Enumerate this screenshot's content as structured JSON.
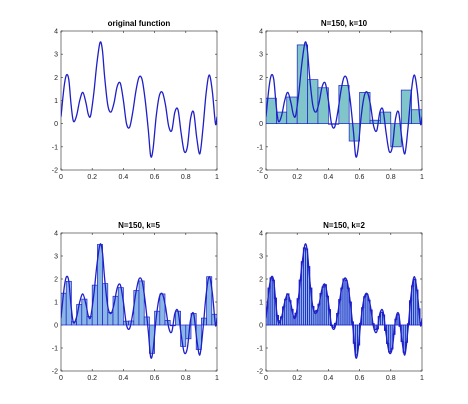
{
  "figure": {
    "background": "#ffffff",
    "axis_color": "#262626",
    "line_color": "#1f1fc8",
    "bar_fill_k10": "#7fc5c9",
    "bar_fill_small_k": "#8ab8e6",
    "bar_edge": "#1f1fc8"
  },
  "chart_data": [
    {
      "type": "line",
      "title": "original function",
      "xlim": [
        0,
        1
      ],
      "ylim": [
        -2,
        4
      ],
      "xticks": [
        "0",
        "0.2",
        "0.4",
        "0.6",
        "0.8",
        "1"
      ],
      "yticks": [
        "-2",
        "-1",
        "0",
        "1",
        "2",
        "3",
        "4"
      ],
      "k": null,
      "bins": [],
      "series": [
        {
          "x": [
            0.0,
            0.02,
            0.035,
            0.05,
            0.065,
            0.08,
            0.1,
            0.12,
            0.14,
            0.16,
            0.175,
            0.19,
            0.21,
            0.23,
            0.25,
            0.265,
            0.28,
            0.3,
            0.32,
            0.34,
            0.36,
            0.38,
            0.4,
            0.42,
            0.44,
            0.46,
            0.48,
            0.5,
            0.52,
            0.54,
            0.56,
            0.575,
            0.59,
            0.61,
            0.63,
            0.65,
            0.67,
            0.69,
            0.71,
            0.73,
            0.75,
            0.77,
            0.79,
            0.81,
            0.83,
            0.85,
            0.87,
            0.89,
            0.91,
            0.93,
            0.95,
            0.97,
            0.99,
            1.0
          ],
          "y": [
            0.3,
            1.6,
            2.1,
            1.9,
            0.8,
            0.1,
            0.35,
            1.0,
            1.35,
            0.9,
            0.4,
            0.35,
            1.3,
            2.6,
            3.5,
            3.2,
            2.0,
            0.8,
            0.5,
            0.9,
            1.6,
            1.75,
            1.0,
            0.0,
            -0.15,
            0.5,
            1.4,
            2.0,
            1.9,
            1.0,
            -0.3,
            -1.4,
            -1.1,
            0.3,
            1.2,
            1.35,
            0.8,
            -0.1,
            -0.3,
            0.5,
            0.6,
            -0.4,
            -1.2,
            -1.0,
            0.2,
            0.5,
            -0.6,
            -1.3,
            -0.2,
            1.3,
            2.1,
            1.4,
            0.0,
            0.3
          ]
        }
      ]
    },
    {
      "type": "line",
      "title": "N=150, k=10",
      "xlim": [
        0,
        1
      ],
      "ylim": [
        -2,
        4
      ],
      "xticks": [
        "0",
        "0.2",
        "0.4",
        "0.6",
        "0.8",
        "1"
      ],
      "yticks": [
        "-2",
        "-1",
        "0",
        "1",
        "2",
        "3",
        "4"
      ],
      "k": 10,
      "bins": [
        {
          "x0": 0.0,
          "x1": 0.067,
          "value": 1.1
        },
        {
          "x0": 0.067,
          "x1": 0.133,
          "value": 0.5
        },
        {
          "x0": 0.133,
          "x1": 0.2,
          "value": 1.15
        },
        {
          "x0": 0.2,
          "x1": 0.267,
          "value": 3.4
        },
        {
          "x0": 0.267,
          "x1": 0.333,
          "value": 1.9
        },
        {
          "x0": 0.333,
          "x1": 0.4,
          "value": 1.55
        },
        {
          "x0": 0.4,
          "x1": 0.467,
          "value": 0.0
        },
        {
          "x0": 0.467,
          "x1": 0.533,
          "value": 1.65
        },
        {
          "x0": 0.533,
          "x1": 0.6,
          "value": -0.75
        },
        {
          "x0": 0.6,
          "x1": 0.667,
          "value": 1.35
        },
        {
          "x0": 0.667,
          "x1": 0.733,
          "value": 0.15
        },
        {
          "x0": 0.733,
          "x1": 0.8,
          "value": 0.5
        },
        {
          "x0": 0.8,
          "x1": 0.867,
          "value": -1.0
        },
        {
          "x0": 0.867,
          "x1": 0.933,
          "value": 1.45
        },
        {
          "x0": 0.933,
          "x1": 1.0,
          "value": 0.6
        }
      ],
      "series": [
        {
          "from": 0
        }
      ]
    },
    {
      "type": "line",
      "title": "N=150, k=5",
      "xlim": [
        0,
        1
      ],
      "ylim": [
        -2,
        4
      ],
      "xticks": [
        "0",
        "0.2",
        "0.4",
        "0.6",
        "0.8",
        "1"
      ],
      "yticks": [
        "-2",
        "-1",
        "0",
        "1",
        "2",
        "3",
        "4"
      ],
      "k": 5,
      "bins": [],
      "series": [
        {
          "from": 0
        }
      ]
    },
    {
      "type": "line",
      "title": "N=150, k=2",
      "xlim": [
        0,
        1
      ],
      "ylim": [
        -2,
        4
      ],
      "xticks": [
        "0",
        "0.2",
        "0.4",
        "0.6",
        "0.8",
        "1"
      ],
      "yticks": [
        "-2",
        "-1",
        "0",
        "1",
        "2",
        "3",
        "4"
      ],
      "k": 2,
      "bins": [],
      "series": [
        {
          "from": 0
        }
      ]
    }
  ]
}
